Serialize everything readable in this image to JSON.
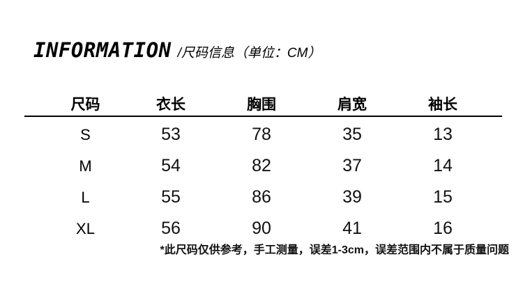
{
  "header": {
    "title": "INFORMATION",
    "subtitle": "/尺码信息（单位：CM）"
  },
  "table": {
    "columns": [
      "尺码",
      "衣长",
      "胸围",
      "肩宽",
      "袖长"
    ],
    "rows": [
      {
        "size": "S",
        "values": [
          "53",
          "78",
          "35",
          "13"
        ]
      },
      {
        "size": "M",
        "values": [
          "54",
          "82",
          "37",
          "14"
        ]
      },
      {
        "size": "L",
        "values": [
          "55",
          "86",
          "39",
          "15"
        ]
      },
      {
        "size": "XL",
        "values": [
          "56",
          "90",
          "41",
          "16"
        ]
      }
    ]
  },
  "footnote": "*此尺码仅供参考，手工测量，误差1-3cm，误差范围内不属于质量问题",
  "colors": {
    "background": "#ffffff",
    "text": "#000000",
    "divider": "#000000"
  },
  "chart_data": {
    "type": "table",
    "title": "INFORMATION /尺码信息（单位：CM）",
    "unit": "CM",
    "columns": [
      "尺码",
      "衣长",
      "胸围",
      "肩宽",
      "袖长"
    ],
    "rows": [
      [
        "S",
        53,
        78,
        35,
        13
      ],
      [
        "M",
        54,
        82,
        37,
        14
      ],
      [
        "L",
        55,
        86,
        39,
        15
      ],
      [
        "XL",
        56,
        90,
        41,
        16
      ]
    ],
    "footnote": "*此尺码仅供参考，手工测量，误差1-3cm，误差范围内不属于质量问题"
  }
}
